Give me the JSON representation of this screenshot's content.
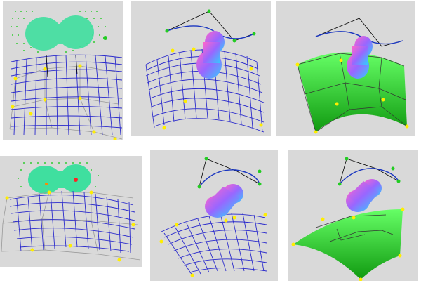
{
  "figure": {
    "panels": [
      {
        "id": "top-left",
        "surface": "wireframe",
        "curve": "none"
      },
      {
        "id": "top-middle",
        "surface": "wireframe",
        "curve": "bezier"
      },
      {
        "id": "top-right",
        "surface": "shaded",
        "curve": "bezier"
      },
      {
        "id": "bottom-left",
        "surface": "wireframe",
        "curve": "none"
      },
      {
        "id": "bottom-middle",
        "surface": "wireframe",
        "curve": "bezier"
      },
      {
        "id": "bottom-right",
        "surface": "shaded",
        "curve": "bezier"
      }
    ],
    "colors": {
      "background": "#d9d9d9",
      "wire": "#2a2acc",
      "surface": "#22cc22",
      "control_point": "#ffee00",
      "blob": "#3fdf9f",
      "curve": "#1a36c0"
    }
  }
}
